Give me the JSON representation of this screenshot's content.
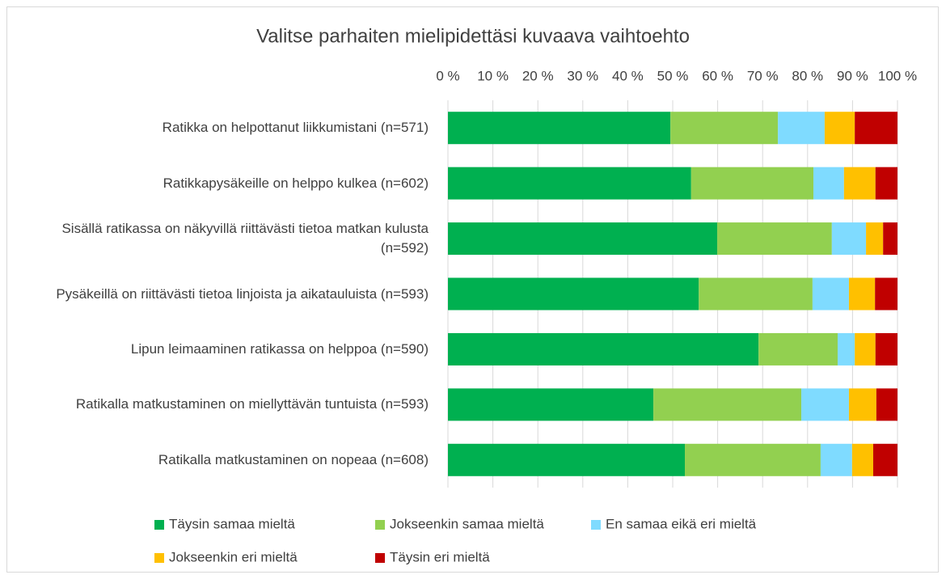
{
  "chart_data": {
    "type": "stacked-bar-horizontal",
    "title": "Valitse parhaiten mielipidettäsi kuvaava vaihtoehto",
    "categories": [
      "Ratikka on helpottanut liikkumistani (n=571)",
      "Ratikkapysäkeille on helppo kulkea (n=602)",
      "Sisällä ratikassa on näkyvillä riittävästi tietoa matkan kulusta (n=592)",
      "Pysäkeillä on riittävästi tietoa linjoista ja aikatauluista (n=593)",
      "Lipun leimaaminen ratikassa on helppoa (n=590)",
      "Ratikalla matkustaminen on miellyttävän tuntuista (n=593)",
      "Ratikalla matkustaminen on nopeaa (n=608)"
    ],
    "series": [
      {
        "name": "Täysin samaa mieltä",
        "color": "#00b050",
        "values": [
          49.5,
          54.1,
          59.9,
          55.8,
          69.1,
          45.7,
          52.7
        ]
      },
      {
        "name": "Jokseenkin samaa mieltä",
        "color": "#92d050",
        "values": [
          23.9,
          27.2,
          25.5,
          25.3,
          17.6,
          32.9,
          30.2
        ]
      },
      {
        "name": "En samaa eikä eri mieltä",
        "color": "#7fdbff",
        "values": [
          10.4,
          6.8,
          7.6,
          8.1,
          3.8,
          10.6,
          7.0
        ]
      },
      {
        "name": "Jokseenkin eri mieltä",
        "color": "#ffc000",
        "values": [
          6.7,
          7.0,
          3.8,
          5.8,
          4.6,
          6.1,
          4.7
        ]
      },
      {
        "name": "Täysin eri mieltä",
        "color": "#c00000",
        "values": [
          9.5,
          4.9,
          3.2,
          5.0,
          4.9,
          4.7,
          5.4
        ]
      }
    ],
    "xlim": [
      0,
      100
    ],
    "xticks": [
      {
        "value": 0,
        "label": "0 %"
      },
      {
        "value": 10,
        "label": "10 %"
      },
      {
        "value": 20,
        "label": "20 %"
      },
      {
        "value": 30,
        "label": "30 %"
      },
      {
        "value": 40,
        "label": "40 %"
      },
      {
        "value": 50,
        "label": "50 %"
      },
      {
        "value": 60,
        "label": "60 %"
      },
      {
        "value": 70,
        "label": "70 %"
      },
      {
        "value": 80,
        "label": "80 %"
      },
      {
        "value": 90,
        "label": "90 %"
      },
      {
        "value": 100,
        "label": "100 %"
      }
    ],
    "grid": true,
    "legend": "bottom"
  }
}
